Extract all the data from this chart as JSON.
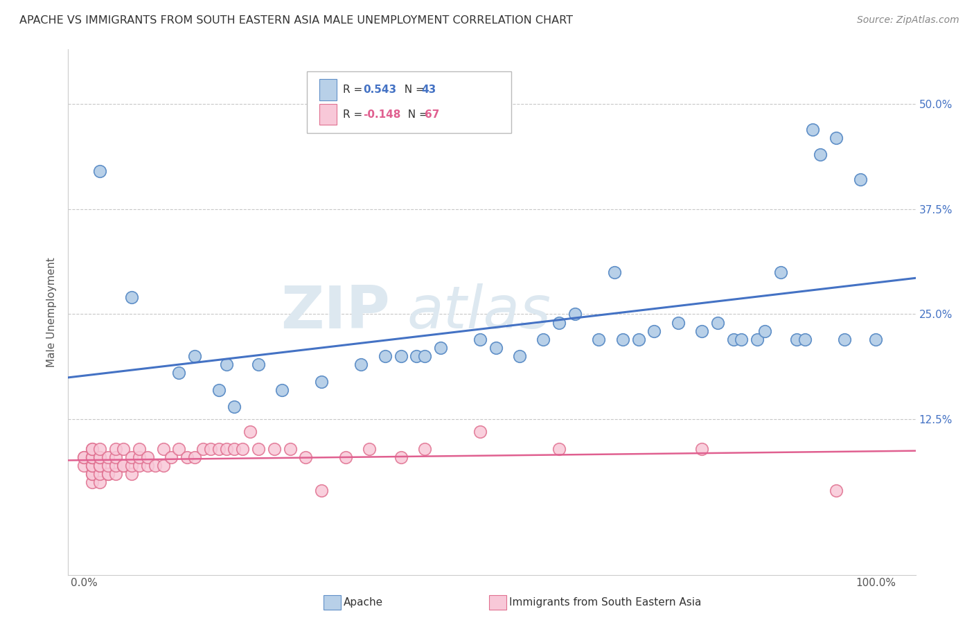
{
  "title": "APACHE VS IMMIGRANTS FROM SOUTH EASTERN ASIA MALE UNEMPLOYMENT CORRELATION CHART",
  "source": "Source: ZipAtlas.com",
  "ylabel": "Male Unemployment",
  "yticks": [
    0.0,
    0.125,
    0.25,
    0.375,
    0.5
  ],
  "ytick_labels": [
    "",
    "12.5%",
    "25.0%",
    "37.5%",
    "50.0%"
  ],
  "xticks": [
    0.0,
    0.25,
    0.5,
    0.75,
    1.0
  ],
  "xtick_labels": [
    "0.0%",
    "",
    "",
    "",
    "100.0%"
  ],
  "xlim": [
    -0.02,
    1.05
  ],
  "ylim": [
    -0.06,
    0.565
  ],
  "apache_color": "#b8d0e8",
  "apache_edge": "#6090c8",
  "apache_line_color": "#4472c4",
  "immigrants_color": "#f8c8d8",
  "immigrants_edge": "#e07090",
  "immigrants_line_color": "#e06090",
  "background_color": "#ffffff",
  "grid_color": "#c8c8c8",
  "watermark_color": "#dde8f0",
  "apache_R": "0.543",
  "apache_N": "43",
  "immigrants_R": "-0.148",
  "immigrants_N": "67",
  "apache_x": [
    0.02,
    0.06,
    0.12,
    0.14,
    0.17,
    0.18,
    0.19,
    0.22,
    0.25,
    0.3,
    0.35,
    0.38,
    0.4,
    0.42,
    0.43,
    0.45,
    0.5,
    0.52,
    0.55,
    0.58,
    0.6,
    0.62,
    0.65,
    0.67,
    0.68,
    0.7,
    0.72,
    0.75,
    0.78,
    0.8,
    0.82,
    0.83,
    0.85,
    0.86,
    0.88,
    0.9,
    0.91,
    0.92,
    0.93,
    0.95,
    0.96,
    0.98,
    1.0
  ],
  "apache_y": [
    0.42,
    0.27,
    0.18,
    0.2,
    0.16,
    0.19,
    0.14,
    0.19,
    0.16,
    0.17,
    0.19,
    0.2,
    0.2,
    0.2,
    0.2,
    0.21,
    0.22,
    0.21,
    0.2,
    0.22,
    0.24,
    0.25,
    0.22,
    0.3,
    0.22,
    0.22,
    0.23,
    0.24,
    0.23,
    0.24,
    0.22,
    0.22,
    0.22,
    0.23,
    0.3,
    0.22,
    0.22,
    0.47,
    0.44,
    0.46,
    0.22,
    0.41,
    0.22
  ],
  "immigrants_x": [
    0.0,
    0.0,
    0.0,
    0.01,
    0.01,
    0.01,
    0.01,
    0.01,
    0.01,
    0.01,
    0.01,
    0.01,
    0.01,
    0.01,
    0.02,
    0.02,
    0.02,
    0.02,
    0.02,
    0.02,
    0.02,
    0.03,
    0.03,
    0.03,
    0.03,
    0.04,
    0.04,
    0.04,
    0.04,
    0.05,
    0.05,
    0.05,
    0.06,
    0.06,
    0.06,
    0.07,
    0.07,
    0.07,
    0.08,
    0.08,
    0.09,
    0.1,
    0.1,
    0.11,
    0.12,
    0.13,
    0.14,
    0.15,
    0.16,
    0.17,
    0.18,
    0.19,
    0.2,
    0.21,
    0.22,
    0.24,
    0.26,
    0.28,
    0.3,
    0.33,
    0.36,
    0.4,
    0.43,
    0.5,
    0.6,
    0.78,
    0.95
  ],
  "immigrants_y": [
    0.07,
    0.08,
    0.08,
    0.05,
    0.06,
    0.06,
    0.07,
    0.07,
    0.08,
    0.08,
    0.08,
    0.08,
    0.09,
    0.09,
    0.05,
    0.06,
    0.07,
    0.07,
    0.08,
    0.08,
    0.09,
    0.06,
    0.06,
    0.07,
    0.08,
    0.06,
    0.07,
    0.08,
    0.09,
    0.07,
    0.07,
    0.09,
    0.06,
    0.07,
    0.08,
    0.07,
    0.08,
    0.09,
    0.07,
    0.08,
    0.07,
    0.07,
    0.09,
    0.08,
    0.09,
    0.08,
    0.08,
    0.09,
    0.09,
    0.09,
    0.09,
    0.09,
    0.09,
    0.11,
    0.09,
    0.09,
    0.09,
    0.08,
    0.04,
    0.08,
    0.09,
    0.08,
    0.09,
    0.11,
    0.09,
    0.09,
    0.04
  ]
}
